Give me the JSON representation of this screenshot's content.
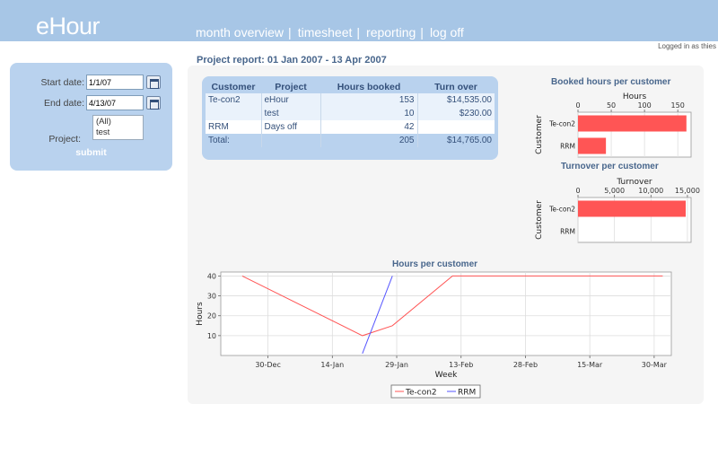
{
  "app": {
    "logo": "eHour"
  },
  "nav": {
    "items": [
      {
        "label": "month overview",
        "sep": "|"
      },
      {
        "label": "timesheet",
        "sep": "|"
      },
      {
        "label": "reporting",
        "sep": "|"
      },
      {
        "label": "log off",
        "sep": ""
      }
    ]
  },
  "user": {
    "logged_in": "Logged in as thies"
  },
  "filter": {
    "start_label": "Start date:",
    "start_value": "1/1/07",
    "end_label": "End date:",
    "end_value": "4/13/07",
    "project_label": "Project:",
    "project_options": [
      "(All)",
      "test"
    ],
    "submit_label": "submit"
  },
  "report": {
    "title": "Project report: 01 Jan 2007 - 13 Apr 2007",
    "columns": [
      "Customer",
      "Project",
      "Hours booked",
      "Turn over"
    ],
    "rows": [
      [
        "Te-con2",
        "eHour",
        "153",
        "$14,535.00"
      ],
      [
        "",
        "test",
        "10",
        "$230.00"
      ],
      [
        "RRM",
        "Days off",
        "42",
        ""
      ]
    ],
    "total": [
      "Total:",
      "",
      "205",
      "$14,765.00"
    ]
  },
  "colors": {
    "te_con2": "#ff5555",
    "rrm": "#5555ff",
    "header": "#a7c6e6",
    "panel": "#b9d2ee"
  },
  "chart_data": [
    {
      "type": "bar",
      "title": "Booked hours per customer",
      "xlabel": "Hours",
      "ylabel": "Customer",
      "orientation": "horizontal",
      "categories": [
        "Te-con2",
        "RRM"
      ],
      "values": [
        163,
        42
      ],
      "xlim": [
        0,
        170
      ],
      "ticks": [
        0,
        50,
        100,
        150
      ],
      "tick_labels": [
        "0",
        "50",
        "100",
        "150"
      ],
      "grid": true
    },
    {
      "type": "bar",
      "title": "Turnover per customer",
      "xlabel": "Turnover",
      "ylabel": "Customer",
      "orientation": "horizontal",
      "categories": [
        "Te-con2",
        "RRM"
      ],
      "values": [
        14765,
        0
      ],
      "xlim": [
        0,
        15500
      ],
      "ticks": [
        0,
        5000,
        10000,
        15000
      ],
      "tick_labels": [
        "0",
        "5,000",
        "10,000",
        "15,000"
      ],
      "grid": true
    },
    {
      "type": "line",
      "title": "Hours per customer",
      "xlabel": "Week",
      "ylabel": "Hours",
      "x_ticks": [
        "30-Dec",
        "14-Jan",
        "29-Jan",
        "13-Feb",
        "28-Feb",
        "15-Mar",
        "30-Mar"
      ],
      "ylim": [
        0,
        42
      ],
      "y_ticks": [
        10,
        20,
        30,
        40
      ],
      "grid": true,
      "legend": "bottom",
      "series": [
        {
          "name": "Te-con2",
          "points": [
            [
              "2006-12-24",
              40
            ],
            [
              "2007-01-21",
              10
            ],
            [
              "2007-01-28",
              15
            ],
            [
              "2007-02-11",
              40
            ],
            [
              "2007-04-01",
              40
            ]
          ]
        },
        {
          "name": "RRM",
          "points": [
            [
              "2007-01-21",
              1
            ],
            [
              "2007-01-28",
              40
            ]
          ]
        }
      ]
    }
  ]
}
